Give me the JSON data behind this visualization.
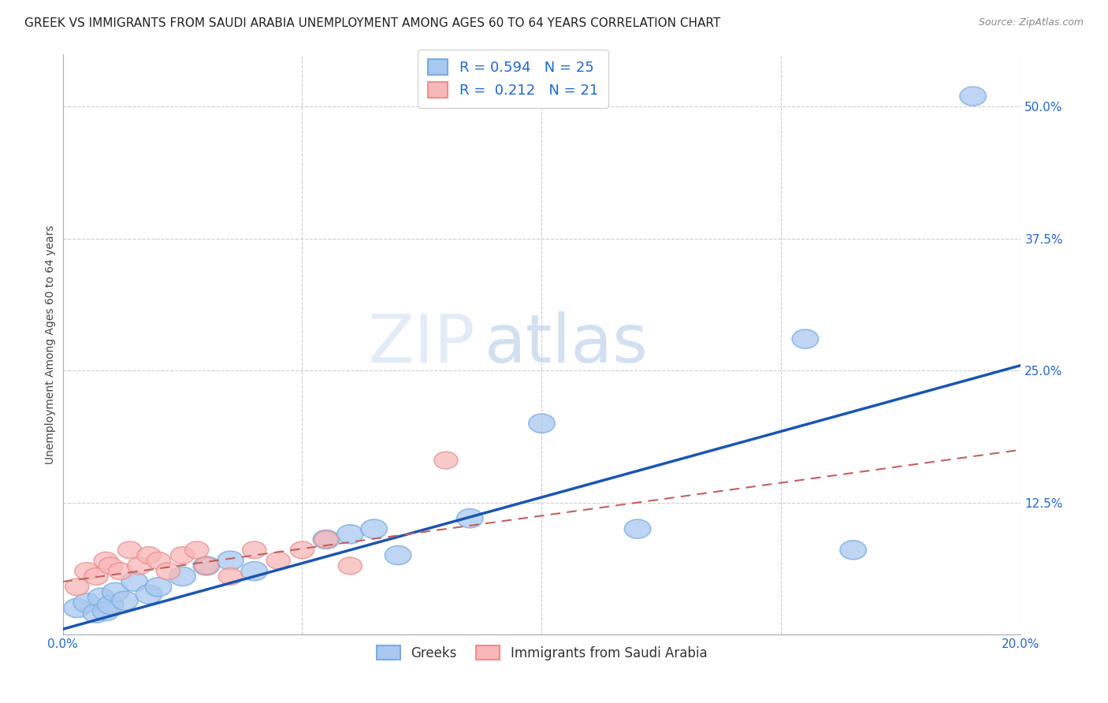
{
  "title": "GREEK VS IMMIGRANTS FROM SAUDI ARABIA UNEMPLOYMENT AMONG AGES 60 TO 64 YEARS CORRELATION CHART",
  "source": "Source: ZipAtlas.com",
  "ylabel": "Unemployment Among Ages 60 to 64 years",
  "xlim": [
    0.0,
    0.2
  ],
  "ylim": [
    0.0,
    0.55
  ],
  "xticks": [
    0.0,
    0.05,
    0.1,
    0.15,
    0.2
  ],
  "xtick_labels": [
    "0.0%",
    "",
    "",
    "",
    "20.0%"
  ],
  "ytick_positions_right": [
    0.0,
    0.125,
    0.25,
    0.375,
    0.5
  ],
  "ytick_labels_right": [
    "",
    "12.5%",
    "25.0%",
    "37.5%",
    "50.0%"
  ],
  "legend_labels": [
    "Greeks",
    "Immigrants from Saudi Arabia"
  ],
  "legend_R": [
    "0.594",
    "0.212"
  ],
  "legend_N": [
    "25",
    "21"
  ],
  "blue_face": "#a8c8f0",
  "blue_edge": "#7aacdc",
  "pink_face": "#f8b8b8",
  "pink_edge": "#e89090",
  "blue_line_color": "#1a56b0",
  "pink_line_color": "#c06060",
  "watermark_zip": "ZIP",
  "watermark_atlas": "atlas",
  "title_fontsize": 11,
  "axis_label_fontsize": 10,
  "tick_fontsize": 11,
  "greek_scatter_x": [
    0.003,
    0.005,
    0.007,
    0.008,
    0.009,
    0.01,
    0.011,
    0.013,
    0.015,
    0.018,
    0.02,
    0.025,
    0.03,
    0.035,
    0.04,
    0.055,
    0.06,
    0.065,
    0.07,
    0.085,
    0.1,
    0.12,
    0.155,
    0.165,
    0.19
  ],
  "greek_scatter_y": [
    0.025,
    0.03,
    0.02,
    0.035,
    0.022,
    0.028,
    0.04,
    0.032,
    0.05,
    0.038,
    0.045,
    0.055,
    0.065,
    0.07,
    0.06,
    0.09,
    0.095,
    0.1,
    0.075,
    0.11,
    0.2,
    0.1,
    0.28,
    0.08,
    0.51
  ],
  "saudi_scatter_x": [
    0.003,
    0.005,
    0.007,
    0.009,
    0.01,
    0.012,
    0.014,
    0.016,
    0.018,
    0.02,
    0.022,
    0.025,
    0.028,
    0.03,
    0.035,
    0.04,
    0.045,
    0.05,
    0.055,
    0.06,
    0.08
  ],
  "saudi_scatter_y": [
    0.045,
    0.06,
    0.055,
    0.07,
    0.065,
    0.06,
    0.08,
    0.065,
    0.075,
    0.07,
    0.06,
    0.075,
    0.08,
    0.065,
    0.055,
    0.08,
    0.07,
    0.08,
    0.09,
    0.065,
    0.165
  ],
  "blue_line_x": [
    0.0,
    0.2
  ],
  "blue_line_y": [
    0.005,
    0.255
  ],
  "pink_line_x": [
    0.0,
    0.2
  ],
  "pink_line_y": [
    0.05,
    0.175
  ],
  "grid_color": "#cccccc",
  "background_color": "#ffffff"
}
